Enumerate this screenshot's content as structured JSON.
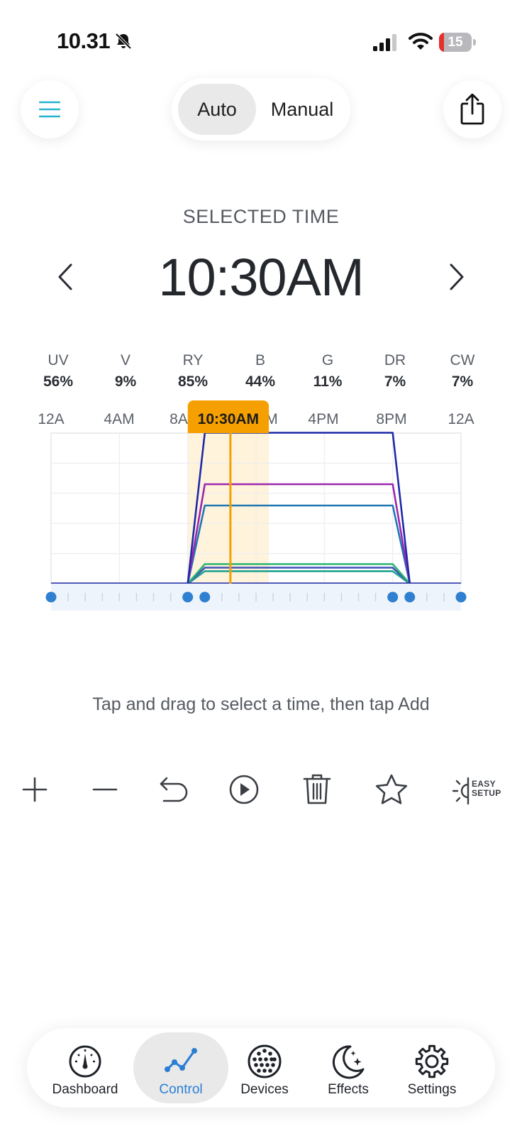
{
  "status_bar": {
    "time": "10.31",
    "battery_level": "15",
    "battery_fraction": 0.15
  },
  "mode_toggle": {
    "options": [
      "Auto",
      "Manual"
    ],
    "selected": "Auto"
  },
  "selected_time": {
    "label": "SELECTED TIME",
    "value": "10:30AM"
  },
  "channels": [
    {
      "name": "UV",
      "value": "56%",
      "color": "#9c27b0"
    },
    {
      "name": "V",
      "value": "9%",
      "color": "#3f51b5"
    },
    {
      "name": "RY",
      "value": "85%",
      "color": "#1e2aa8"
    },
    {
      "name": "B",
      "value": "44%",
      "color": "#1f78b4"
    },
    {
      "name": "G",
      "value": "11%",
      "color": "#2bb673"
    },
    {
      "name": "DR",
      "value": "7%",
      "color": "#26a69a"
    },
    {
      "name": "CW",
      "value": "7%",
      "color": "#4caf50"
    }
  ],
  "chart_data": {
    "type": "line",
    "x_ticks": [
      "12A",
      "4AM",
      "8A",
      "M",
      "4PM",
      "8PM",
      "12A"
    ],
    "x_range_hours": [
      0,
      24
    ],
    "y_range_percent": [
      0,
      100
    ],
    "selected_hour": 10.5,
    "selection_window_hours": [
      8,
      12.75
    ],
    "marker_label": "10:30AM",
    "keyframe_hours": [
      0,
      8,
      9,
      20,
      21,
      24
    ],
    "series": [
      {
        "name": "RY",
        "color": "#1e2aa8",
        "points": [
          [
            0,
            0
          ],
          [
            8,
            0
          ],
          [
            9,
            85
          ],
          [
            20,
            85
          ],
          [
            21,
            0
          ],
          [
            24,
            0
          ]
        ]
      },
      {
        "name": "UV",
        "color": "#9c27b0",
        "points": [
          [
            0,
            0
          ],
          [
            8,
            0
          ],
          [
            9,
            56
          ],
          [
            20,
            56
          ],
          [
            21,
            0
          ],
          [
            24,
            0
          ]
        ]
      },
      {
        "name": "B",
        "color": "#1f78b4",
        "points": [
          [
            0,
            0
          ],
          [
            8,
            0
          ],
          [
            9,
            44
          ],
          [
            20,
            44
          ],
          [
            21,
            0
          ],
          [
            24,
            0
          ]
        ]
      },
      {
        "name": "G",
        "color": "#2bb673",
        "points": [
          [
            0,
            0
          ],
          [
            8,
            0
          ],
          [
            9,
            11
          ],
          [
            20,
            11
          ],
          [
            21,
            0
          ],
          [
            24,
            0
          ]
        ]
      },
      {
        "name": "V",
        "color": "#3f51b5",
        "points": [
          [
            0,
            0
          ],
          [
            8,
            0
          ],
          [
            9,
            9
          ],
          [
            20,
            9
          ],
          [
            21,
            0
          ],
          [
            24,
            0
          ]
        ]
      },
      {
        "name": "DR",
        "color": "#26a69a",
        "points": [
          [
            0,
            0
          ],
          [
            8,
            0
          ],
          [
            9,
            7
          ],
          [
            20,
            7
          ],
          [
            21,
            0
          ],
          [
            24,
            0
          ]
        ]
      },
      {
        "name": "CW",
        "color": "#4caf50",
        "points": [
          [
            0,
            0
          ],
          [
            8,
            0
          ],
          [
            9,
            7
          ],
          [
            20,
            7
          ],
          [
            21,
            0
          ],
          [
            24,
            0
          ]
        ]
      }
    ]
  },
  "hint": "Tap and drag to select a time, then tap Add",
  "toolbar": {
    "easy_setup_line1": "EASY",
    "easy_setup_line2": "SETUP"
  },
  "nav": [
    {
      "label": "Dashboard",
      "icon": "gauge-icon"
    },
    {
      "label": "Control",
      "icon": "line-chart-icon",
      "active": true
    },
    {
      "label": "Devices",
      "icon": "led-grid-icon"
    },
    {
      "label": "Effects",
      "icon": "moon-stars-icon"
    },
    {
      "label": "Settings",
      "icon": "gear-icon"
    }
  ],
  "colors": {
    "accent": "#2a7fd4",
    "menu": "#26b3d0",
    "selection": "#f5a000",
    "selection_band": "#fff3dc"
  }
}
